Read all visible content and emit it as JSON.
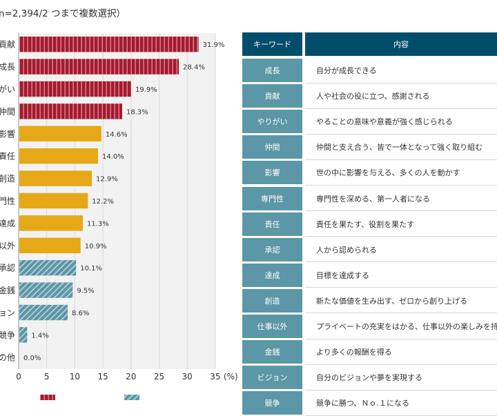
{
  "subtitle": "n=2,394/2 つまで複数選択）",
  "colors": {
    "intrinsic": "#a6192e",
    "ability": "#e6a817",
    "extrinsic": "#5b97a6",
    "table_header": "#024e6a",
    "table_key": "#5b97a6"
  },
  "chart_data": {
    "type": "bar",
    "orientation": "horizontal",
    "categories": [
      "貢献",
      "成長",
      "がい",
      "仲間",
      "影響",
      "責任",
      "創造",
      "門性",
      "達成",
      "以外",
      "承認",
      "金銭",
      "ョン",
      "競争",
      "の他"
    ],
    "values": [
      31.9,
      28.4,
      19.9,
      18.3,
      14.6,
      14.0,
      12.9,
      12.2,
      11.3,
      10.9,
      10.1,
      9.5,
      8.6,
      1.4,
      0.0
    ],
    "value_labels": [
      "31.9%",
      "28.4%",
      "19.9%",
      "18.3%",
      "14.6%",
      "14.0%",
      "12.9%",
      "12.2%",
      "11.3%",
      "10.9%",
      "10.1%",
      "9.5%",
      "8.6%",
      "1.4%",
      "0.0%"
    ],
    "groups": [
      "intrinsic",
      "intrinsic",
      "intrinsic",
      "intrinsic",
      "ability",
      "ability",
      "ability",
      "ability",
      "ability",
      "ability",
      "extrinsic",
      "extrinsic",
      "extrinsic",
      "extrinsic",
      "extrinsic"
    ],
    "x_ticks": [
      "0",
      "5",
      "10",
      "15",
      "20",
      "25",
      "30",
      "35"
    ],
    "x_unit": "(%)",
    "xlim": [
      0,
      35
    ],
    "grid": true
  },
  "table": {
    "header": {
      "keyword": "キーワード",
      "content": "内容"
    },
    "rows": [
      {
        "keyword": "成長",
        "content": "自分が成長できる"
      },
      {
        "keyword": "貢献",
        "content": "人や社会の役に立つ、感謝される"
      },
      {
        "keyword": "やりがい",
        "content": "やることの意味や意義が強く感じられる"
      },
      {
        "keyword": "仲間",
        "content": "仲間と支え合う、皆で一体となって強く取り組む"
      },
      {
        "keyword": "影響",
        "content": "世の中に影響を与える、多くの人を動かす"
      },
      {
        "keyword": "専門性",
        "content": "専門性を深める、第一人者になる"
      },
      {
        "keyword": "責任",
        "content": "責任を果たす、役割を果たす"
      },
      {
        "keyword": "承認",
        "content": "人から認められる"
      },
      {
        "keyword": "達成",
        "content": "目標を達成する"
      },
      {
        "keyword": "創造",
        "content": "新たな価値を生み出す、ゼロから創り上げる"
      },
      {
        "keyword": "仕事以外",
        "content": "プライベートの充実をはかる、仕事以外の楽しみを持"
      },
      {
        "keyword": "金銭",
        "content": "より多くの報酬を得る"
      },
      {
        "keyword": "ビジョン",
        "content": "自分のビジョンや夢を実現する"
      },
      {
        "keyword": "競争",
        "content": "競争に勝つ、Ｎｏ.１になる"
      }
    ]
  }
}
